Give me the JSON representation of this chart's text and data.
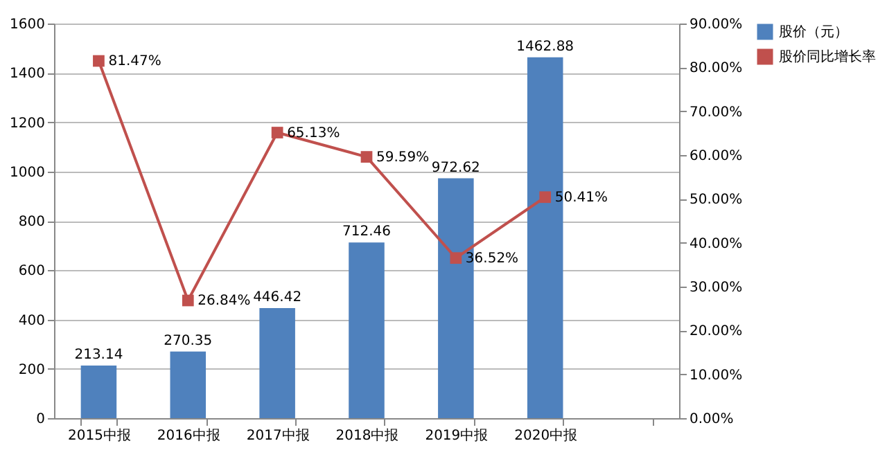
{
  "chart_data": {
    "type": "bar",
    "categories": [
      "2015中报",
      "2016中报",
      "2017中报",
      "2018中报",
      "2019中报",
      "2020中报",
      null
    ],
    "series": [
      {
        "name": "股价（元）",
        "type": "bar",
        "color": "#4f81bd",
        "values": [
          213.14,
          270.35,
          446.42,
          712.46,
          972.62,
          1462.88,
          null
        ],
        "value_labels": [
          "213.14",
          "270.35",
          "446.42",
          "712.46",
          "972.62",
          "1462.88",
          null
        ]
      },
      {
        "name": "股价同比增长率",
        "type": "line",
        "axis": "y2",
        "color": "#c0504d",
        "marker": "square",
        "line_style": "solid",
        "values": [
          81.47,
          26.84,
          65.13,
          59.59,
          36.52,
          50.41,
          null
        ],
        "value_labels": [
          "81.47%",
          "26.84%",
          "65.13%",
          "59.59%",
          "36.52%",
          "50.41%",
          null
        ]
      }
    ],
    "ylim": [
      0,
      1600
    ],
    "yticks": [
      0,
      200,
      400,
      600,
      800,
      1000,
      1200,
      1400,
      1600
    ],
    "y2lim": [
      0,
      90
    ],
    "y2ticks": [
      {
        "value": 0,
        "label": "0.00%"
      },
      {
        "value": 10,
        "label": "10.00%"
      },
      {
        "value": 20,
        "label": "20.00%"
      },
      {
        "value": 30,
        "label": "30.00%"
      },
      {
        "value": 40,
        "label": "40.00%"
      },
      {
        "value": 50,
        "label": "50.00%"
      },
      {
        "value": 60,
        "label": "60.00%"
      },
      {
        "value": 70,
        "label": "70.00%"
      },
      {
        "value": 80,
        "label": "80.00%"
      },
      {
        "value": 90,
        "label": "90.00%"
      }
    ],
    "grid": "y",
    "legend": "right"
  }
}
